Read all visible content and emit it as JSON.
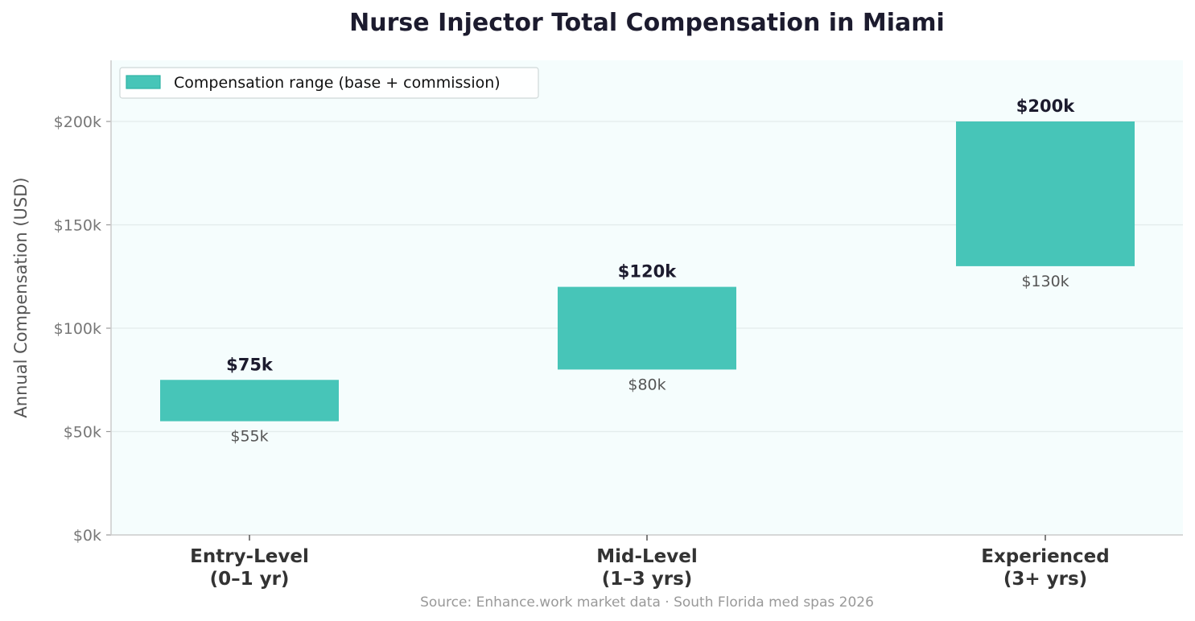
{
  "chart_data": {
    "type": "bar",
    "subtype": "floating-range",
    "title": "Nurse Injector Total Compensation in Miami",
    "xlabel": "",
    "ylabel": "Annual Compensation (USD)",
    "categories": [
      {
        "line1": "Entry-Level",
        "line2": "(0–1 yr)"
      },
      {
        "line1": "Mid-Level",
        "line2": "(1–3 yrs)"
      },
      {
        "line1": "Experienced",
        "line2": "(3+ yrs)"
      }
    ],
    "series": [
      {
        "name": "Compensation range (base + commission)",
        "color": "#47c5b8",
        "low": [
          55000,
          80000,
          130000
        ],
        "high": [
          75000,
          120000,
          200000
        ],
        "low_labels": [
          "$55k",
          "$80k",
          "$130k"
        ],
        "high_labels": [
          "$75k",
          "$120k",
          "$200k"
        ]
      }
    ],
    "ylim": [
      0,
      230000
    ],
    "yticks": [
      0,
      50000,
      100000,
      150000,
      200000
    ],
    "ytick_labels": [
      "$0k",
      "$50k",
      "$100k",
      "$150k",
      "$200k"
    ],
    "grid": true,
    "legend_position": "top-left",
    "source": "Source: Enhance.work market data · South Florida med spas 2026",
    "plot_background": "#f5fdfd",
    "grid_color": "#e3ecec",
    "axis_color": "#cccccc"
  }
}
